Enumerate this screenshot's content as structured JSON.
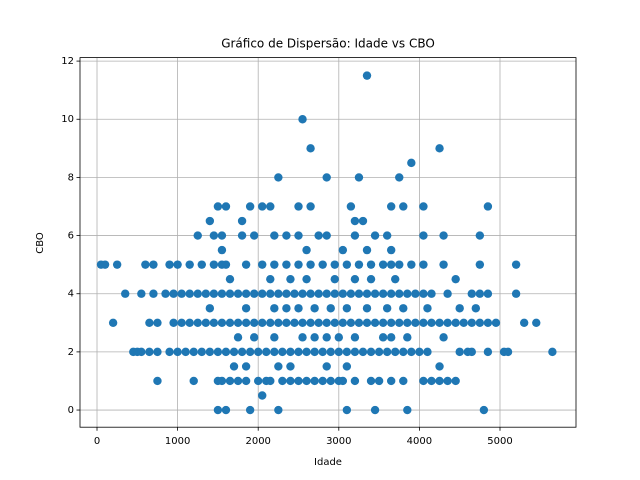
{
  "chart_data": {
    "type": "scatter",
    "title": "Gráfico de Dispersão: Idade vs CBO",
    "x_label": "Idade",
    "y_label": "CBO",
    "color": "#1f77b4",
    "grid": true,
    "xlim": [
      -211,
      5943
    ],
    "ylim": [
      -0.59,
      12.12
    ],
    "xticks": [
      0,
      1000,
      2000,
      3000,
      4000,
      5000
    ],
    "yticks": [
      0,
      2,
      4,
      6,
      8,
      10,
      12
    ],
    "x": [
      1500,
      1600,
      1900,
      2250,
      3100,
      3450,
      3850,
      4800,
      2050,
      750,
      1200,
      1500,
      1550,
      1650,
      1750,
      1850,
      2000,
      2100,
      2150,
      2300,
      2400,
      2500,
      2600,
      2700,
      2800,
      2900,
      3000,
      3050,
      3200,
      3400,
      3500,
      3650,
      3800,
      4050,
      4150,
      4250,
      4350,
      4450,
      1700,
      1850,
      2250,
      2400,
      2850,
      3100,
      4250,
      450,
      500,
      550,
      650,
      750,
      900,
      1000,
      1100,
      1200,
      1300,
      1400,
      1500,
      1600,
      1700,
      1800,
      1900,
      2000,
      2100,
      2200,
      2300,
      2400,
      2500,
      2600,
      2700,
      2800,
      2900,
      3000,
      3100,
      3200,
      3300,
      3400,
      3500,
      3600,
      3700,
      3800,
      3900,
      4000,
      4100,
      4500,
      4600,
      4650,
      4850,
      5050,
      5100,
      5650,
      1750,
      1950,
      2200,
      2550,
      2700,
      2850,
      3000,
      3200,
      3550,
      3650,
      3850,
      4300,
      200,
      650,
      750,
      950,
      1050,
      1150,
      1250,
      1350,
      1450,
      1550,
      1650,
      1750,
      1850,
      1950,
      2050,
      2150,
      2250,
      2350,
      2450,
      2550,
      2650,
      2750,
      2850,
      2950,
      3050,
      3150,
      3250,
      3350,
      3450,
      3550,
      3650,
      3750,
      3850,
      3950,
      4050,
      4150,
      4250,
      4350,
      4450,
      4550,
      4650,
      4750,
      4850,
      4950,
      5300,
      5450,
      1400,
      1850,
      2200,
      2350,
      2500,
      2700,
      2900,
      3100,
      3350,
      3600,
      3800,
      4100,
      4500,
      4700,
      350,
      550,
      700,
      850,
      950,
      1050,
      1150,
      1250,
      1350,
      1450,
      1550,
      1650,
      1750,
      1850,
      1950,
      2050,
      2150,
      2250,
      2350,
      2450,
      2550,
      2650,
      2750,
      2850,
      2950,
      3050,
      3150,
      3250,
      3350,
      3450,
      3550,
      3650,
      3750,
      3850,
      3950,
      4050,
      4150,
      4350,
      4650,
      4750,
      4850,
      5200,
      1650,
      2150,
      2400,
      2600,
      2950,
      3200,
      3400,
      3700,
      4450,
      50,
      100,
      250,
      600,
      700,
      900,
      1000,
      1150,
      1300,
      1450,
      1550,
      1600,
      1850,
      2050,
      2200,
      2350,
      2500,
      2650,
      2800,
      2950,
      3100,
      3250,
      3400,
      3550,
      3650,
      3750,
      3900,
      4050,
      4300,
      4750,
      5200,
      1550,
      2600,
      3050,
      3350,
      3650,
      1250,
      1450,
      1550,
      1800,
      1950,
      2200,
      2350,
      2500,
      2750,
      2850,
      3200,
      3450,
      3600,
      4050,
      4300,
      4750,
      1400,
      1800,
      3200,
      3300,
      1500,
      1600,
      1900,
      2050,
      2150,
      2500,
      2650,
      3150,
      3650,
      3800,
      4050,
      4850,
      2250,
      2850,
      3250,
      3750,
      3900,
      2650,
      4250,
      2550,
      3350
    ],
    "values": [
      0,
      0,
      0,
      0,
      0,
      0,
      0,
      0,
      0.5,
      1,
      1,
      1,
      1,
      1,
      1,
      1,
      1,
      1,
      1,
      1,
      1,
      1,
      1,
      1,
      1,
      1,
      1,
      1,
      1,
      1,
      1,
      1,
      1,
      1,
      1,
      1,
      1,
      1,
      1.5,
      1.5,
      1.5,
      1.5,
      1.5,
      1.5,
      1.5,
      2,
      2,
      2,
      2,
      2,
      2,
      2,
      2,
      2,
      2,
      2,
      2,
      2,
      2,
      2,
      2,
      2,
      2,
      2,
      2,
      2,
      2,
      2,
      2,
      2,
      2,
      2,
      2,
      2,
      2,
      2,
      2,
      2,
      2,
      2,
      2,
      2,
      2,
      2,
      2,
      2,
      2,
      2,
      2,
      2,
      2.5,
      2.5,
      2.5,
      2.5,
      2.5,
      2.5,
      2.5,
      2.5,
      2.5,
      2.5,
      2.5,
      2.5,
      3,
      3,
      3,
      3,
      3,
      3,
      3,
      3,
      3,
      3,
      3,
      3,
      3,
      3,
      3,
      3,
      3,
      3,
      3,
      3,
      3,
      3,
      3,
      3,
      3,
      3,
      3,
      3,
      3,
      3,
      3,
      3,
      3,
      3,
      3,
      3,
      3,
      3,
      3,
      3,
      3,
      3,
      3,
      3,
      3,
      3,
      3.5,
      3.5,
      3.5,
      3.5,
      3.5,
      3.5,
      3.5,
      3.5,
      3.5,
      3.5,
      3.5,
      3.5,
      3.5,
      3.5,
      4,
      4,
      4,
      4,
      4,
      4,
      4,
      4,
      4,
      4,
      4,
      4,
      4,
      4,
      4,
      4,
      4,
      4,
      4,
      4,
      4,
      4,
      4,
      4,
      4,
      4,
      4,
      4,
      4,
      4,
      4,
      4,
      4,
      4,
      4,
      4,
      4,
      4,
      4,
      4,
      4,
      4,
      4.5,
      4.5,
      4.5,
      4.5,
      4.5,
      4.5,
      4.5,
      4.5,
      4.5,
      5,
      5,
      5,
      5,
      5,
      5,
      5,
      5,
      5,
      5,
      5,
      5,
      5,
      5,
      5,
      5,
      5,
      5,
      5,
      5,
      5,
      5,
      5,
      5,
      5,
      5,
      5,
      5,
      5,
      5,
      5,
      5.5,
      5.5,
      5.5,
      5.5,
      5.5,
      6,
      6,
      6,
      6,
      6,
      6,
      6,
      6,
      6,
      6,
      6,
      6,
      6,
      6,
      6,
      6,
      6.5,
      6.5,
      6.5,
      6.5,
      7,
      7,
      7,
      7,
      7,
      7,
      7,
      7,
      7,
      7,
      7,
      7,
      8,
      8,
      8,
      8,
      8.5,
      9,
      9,
      10,
      11.5
    ]
  }
}
